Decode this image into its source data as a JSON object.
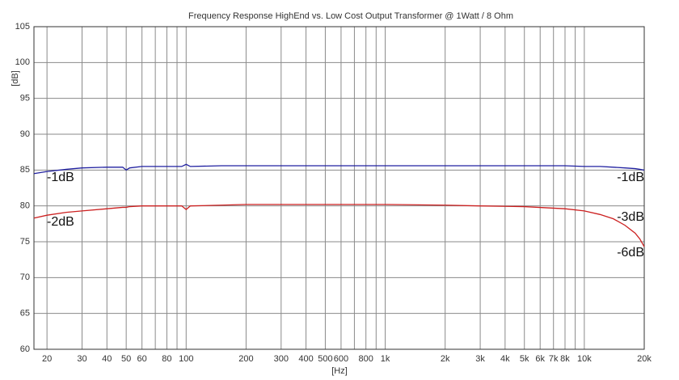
{
  "chart_data": {
    "type": "line",
    "title": "Frequency Response HighEnd vs. Low Cost Output Transformer @ 1Watt / 8 Ohm",
    "x_label": "[Hz]",
    "y_label": "[dB]",
    "log_x": true,
    "grid": true,
    "xlim": [
      17.2,
      20000
    ],
    "ylim": [
      60,
      105
    ],
    "yticks": [
      60,
      65,
      70,
      75,
      80,
      85,
      90,
      95,
      100,
      105
    ],
    "xticks": [
      20,
      30,
      40,
      50,
      60,
      80,
      100,
      200,
      300,
      400,
      500,
      600,
      800,
      {
        "value": 1000,
        "label": "1k"
      },
      {
        "value": 2000,
        "label": "2k"
      },
      {
        "value": 3000,
        "label": "3k"
      },
      {
        "value": 4000,
        "label": "4k"
      },
      {
        "value": 5000,
        "label": "5k"
      },
      {
        "value": 6000,
        "label": "6k"
      },
      {
        "value": 7000,
        "label": "7k"
      },
      {
        "value": 8000,
        "label": "8k"
      },
      {
        "value": 10000,
        "label": "10k"
      },
      {
        "value": 20000,
        "label": "20k"
      }
    ],
    "x_minor_grid": [
      70,
      90,
      700,
      900,
      9000
    ],
    "x": [
      17.2,
      20,
      25,
      30,
      40,
      48,
      50,
      52,
      60,
      80,
      95,
      100,
      105,
      150,
      200,
      300,
      500,
      1000,
      2000,
      3000,
      5000,
      8000,
      10000,
      12000,
      14000,
      16000,
      18000,
      19000,
      20000
    ],
    "series": [
      {
        "color": "#2020a0",
        "values": [
          84.5,
          84.8,
          85.1,
          85.3,
          85.4,
          85.4,
          85.0,
          85.3,
          85.5,
          85.5,
          85.5,
          85.8,
          85.5,
          85.6,
          85.6,
          85.6,
          85.6,
          85.6,
          85.6,
          85.6,
          85.6,
          85.6,
          85.5,
          85.5,
          85.4,
          85.3,
          85.2,
          85.1,
          85.0
        ]
      },
      {
        "color": "#cc2020",
        "values": [
          78.3,
          78.7,
          79.1,
          79.3,
          79.6,
          79.8,
          79.8,
          79.9,
          80.0,
          80.0,
          80.0,
          79.5,
          80.0,
          80.1,
          80.2,
          80.2,
          80.2,
          80.2,
          80.1,
          80.0,
          79.9,
          79.6,
          79.3,
          78.8,
          78.2,
          77.3,
          76.2,
          75.4,
          74.3
        ]
      }
    ],
    "annotations": [
      "-1dB",
      "-2dB",
      "-1dB",
      "-3dB",
      "-6dB"
    ]
  }
}
